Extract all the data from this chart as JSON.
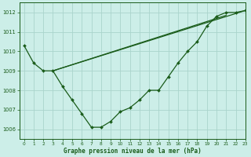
{
  "title": "Graphe pression niveau de la mer (hPa)",
  "background_color": "#cceee8",
  "grid_color": "#aad4cc",
  "line_color": "#1a5c1a",
  "xlim": [
    -0.5,
    23
  ],
  "ylim": [
    1005.5,
    1012.5
  ],
  "yticks": [
    1006,
    1007,
    1008,
    1009,
    1010,
    1011,
    1012
  ],
  "xticks": [
    0,
    1,
    2,
    3,
    4,
    5,
    6,
    7,
    8,
    9,
    10,
    11,
    12,
    13,
    14,
    15,
    16,
    17,
    18,
    19,
    20,
    21,
    22,
    23
  ],
  "series_main": [
    1010.3,
    1009.4,
    1009.0,
    1009.0,
    1008.2,
    1007.5,
    1006.8,
    1006.1,
    1006.1,
    1006.4,
    1006.9,
    1007.1,
    1007.5,
    1008.0,
    1008.0,
    1008.7,
    1009.4,
    1010.0,
    1010.5,
    1011.3,
    1011.8,
    1012.0,
    1012.0,
    1012.1
  ],
  "line1_x": [
    3,
    23
  ],
  "line1_y": [
    1009.0,
    1012.1
  ],
  "line2_x": [
    3,
    21
  ],
  "line2_y": [
    1009.0,
    1011.85
  ],
  "marker": "D",
  "markersize": 2.0,
  "linewidth": 0.9
}
